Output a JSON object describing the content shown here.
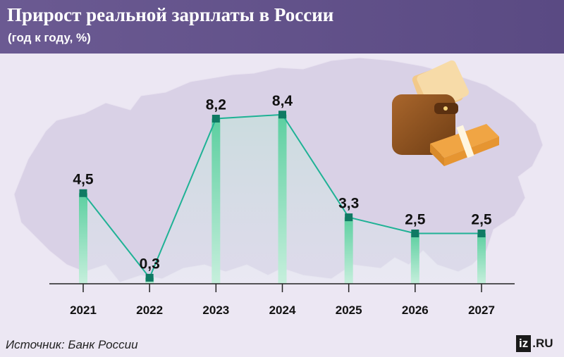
{
  "header": {
    "title": "Прирост реальной зарплаты в России",
    "subtitle": "(год к году, %)"
  },
  "footer": {
    "source": "Источник: Банк России",
    "logo_box": "iz",
    "logo_text": ".RU"
  },
  "colors": {
    "header_bg": "#5a4a83",
    "line": "#1fb295",
    "marker": "#0f7a63",
    "bar_top": "#5ccfa0",
    "bar_bottom": "#c6efdc",
    "map": "#d9d1e6"
  },
  "chart_data": {
    "type": "line",
    "categories": [
      "2021",
      "2022",
      "2023",
      "2024",
      "2025",
      "2026",
      "2027"
    ],
    "values": [
      4.5,
      0.3,
      8.2,
      8.4,
      3.3,
      2.5,
      2.5
    ],
    "labels": [
      "4,5",
      "0,3",
      "8,2",
      "8,4",
      "3,3",
      "2,5",
      "2,5"
    ],
    "ylim": [
      0,
      9
    ],
    "grid": false,
    "legend": "none"
  }
}
